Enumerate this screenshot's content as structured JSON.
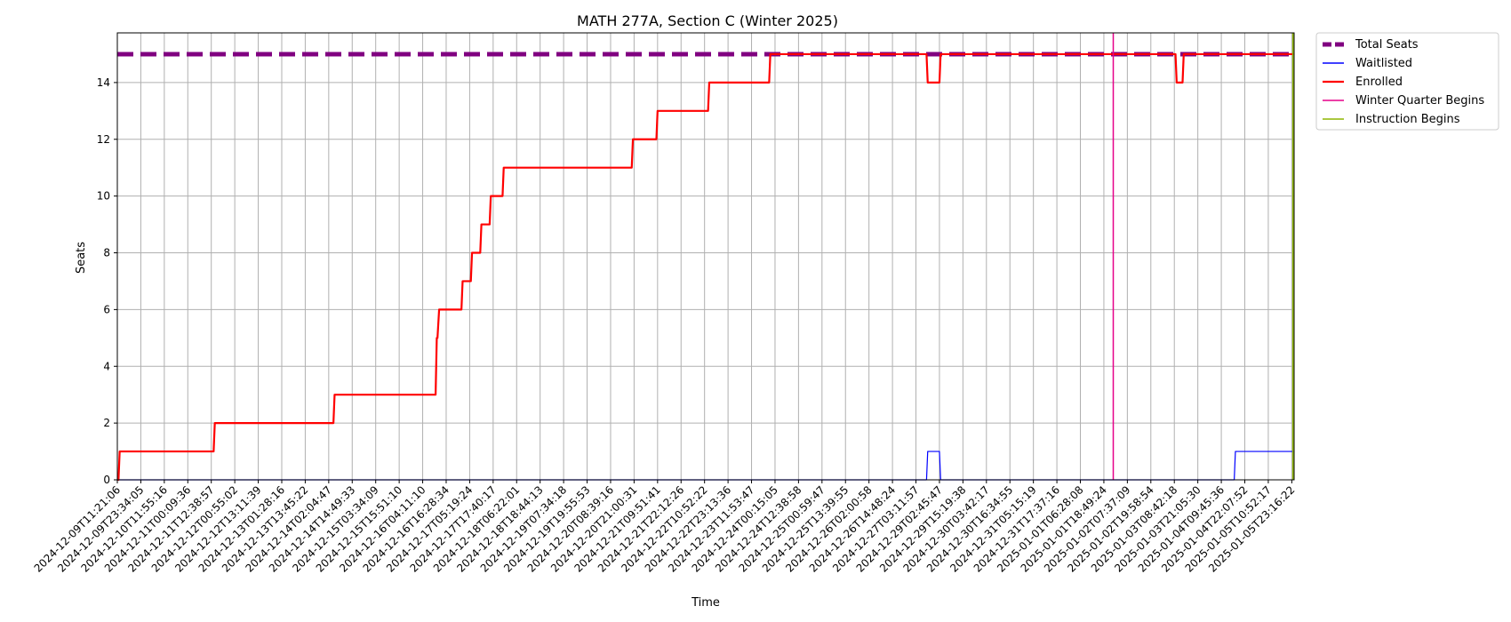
{
  "chart_data": {
    "type": "line",
    "title": "MATH 277A, Section C (Winter 2025)",
    "xlabel": "Time",
    "ylabel": "Seats",
    "ylim": [
      0,
      15.75
    ],
    "yticks": [
      0,
      2,
      4,
      6,
      8,
      10,
      12,
      14
    ],
    "grid": true,
    "legend_position": "outside upper right",
    "x_range_index": [
      0,
      50.1
    ],
    "x_tick_labels": [
      "2024-12-09T11:21:06",
      "2024-12-09T23:34:05",
      "2024-12-10T11:55:16",
      "2024-12-11T00:09:36",
      "2024-12-11T12:38:57",
      "2024-12-12T00:55:02",
      "2024-12-12T13:11:39",
      "2024-12-13T01:28:16",
      "2024-12-13T13:45:22",
      "2024-12-14T02:04:47",
      "2024-12-14T14:49:33",
      "2024-12-15T03:34:09",
      "2024-12-15T15:51:10",
      "2024-12-16T04:11:10",
      "2024-12-16T16:28:34",
      "2024-12-17T05:19:24",
      "2024-12-17T17:40:17",
      "2024-12-18T06:22:01",
      "2024-12-18T18:44:13",
      "2024-12-19T07:34:18",
      "2024-12-19T19:55:53",
      "2024-12-20T08:39:16",
      "2024-12-20T21:00:31",
      "2024-12-21T09:51:41",
      "2024-12-21T22:12:26",
      "2024-12-22T10:52:22",
      "2024-12-22T23:13:36",
      "2024-12-23T11:53:47",
      "2024-12-24T00:15:05",
      "2024-12-24T12:38:58",
      "2024-12-25T00:59:47",
      "2024-12-25T13:39:55",
      "2024-12-26T02:00:58",
      "2024-12-26T14:48:24",
      "2024-12-27T03:11:57",
      "2024-12-29T02:45:47",
      "2024-12-29T15:19:38",
      "2024-12-30T03:42:17",
      "2024-12-30T16:34:55",
      "2024-12-31T05:15:19",
      "2024-12-31T17:37:16",
      "2025-01-01T06:28:08",
      "2025-01-01T18:49:24",
      "2025-01-02T07:37:09",
      "2025-01-02T19:58:54",
      "2025-01-03T08:42:18",
      "2025-01-03T21:05:30",
      "2025-01-04T09:45:36",
      "2025-01-04T22:07:52",
      "2025-01-05T10:52:17",
      "2025-01-05T23:16:22"
    ],
    "series": [
      {
        "name": "Total Seats",
        "color": "#800080",
        "style": "dashed",
        "x": [
          0,
          50.1
        ],
        "y": [
          15,
          15
        ]
      },
      {
        "name": "Waitlisted",
        "color": "#0000ff",
        "style": "solid",
        "x": [
          0,
          34.45,
          34.5,
          35.0,
          35.05,
          47.55,
          47.6,
          50.1
        ],
        "y": [
          0,
          0,
          1,
          1,
          0,
          0,
          1,
          1
        ]
      },
      {
        "name": "Enrolled",
        "color": "#ff0000",
        "style": "solid",
        "x": [
          0,
          0.05,
          0.1,
          4.1,
          4.15,
          9.2,
          9.25,
          13.55,
          13.6,
          13.63,
          13.7,
          14.65,
          14.7,
          15.05,
          15.1,
          15.45,
          15.5,
          15.85,
          15.9,
          16.4,
          16.45,
          21.9,
          21.95,
          22.95,
          23.0,
          25.15,
          25.2,
          27.75,
          27.8,
          34.45,
          34.5,
          35.0,
          35.05,
          45.05,
          45.1,
          45.35,
          45.4,
          50.1
        ],
        "y": [
          0,
          0,
          1,
          1,
          2,
          2,
          3,
          3,
          5,
          5,
          6,
          6,
          7,
          7,
          8,
          8,
          9,
          9,
          10,
          10,
          11,
          11,
          12,
          12,
          13,
          13,
          14,
          14,
          15,
          15,
          14,
          14,
          15,
          15,
          14,
          14,
          15,
          15
        ]
      },
      {
        "name": "Winter Quarter Begins",
        "color": "#e6008a",
        "style": "vline",
        "x": 42.4
      },
      {
        "name": "Instruction Begins",
        "color": "#8db600",
        "style": "vline",
        "x": 50.05
      }
    ]
  }
}
